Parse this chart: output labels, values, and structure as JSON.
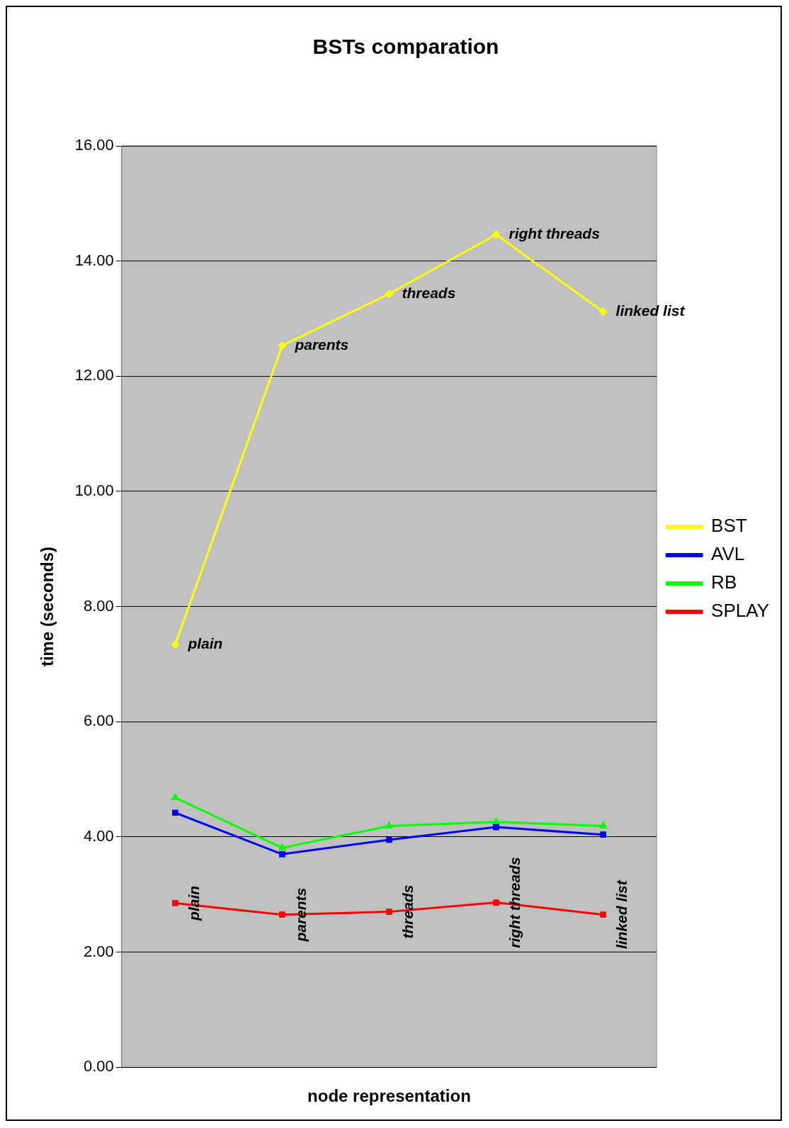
{
  "chart_data": {
    "type": "line",
    "title": "BSTs comparation",
    "xlabel": "node representation",
    "ylabel": "time (seconds)",
    "categories": [
      null,
      null,
      null,
      null,
      null
    ],
    "series": [
      {
        "name": "BST",
        "color": "#ffff00",
        "marker": "diamond",
        "values": [
          7.34,
          12.53,
          13.43,
          14.46,
          13.12
        ]
      },
      {
        "name": "AVL",
        "color": "#0000ff",
        "marker": "square",
        "values": [
          4.42,
          3.7,
          3.95,
          4.17,
          4.04
        ]
      },
      {
        "name": "RB",
        "color": "#00ff00",
        "marker": "triangle",
        "values": [
          4.68,
          3.81,
          4.19,
          4.26,
          4.19
        ]
      },
      {
        "name": "SPLAY",
        "color": "#ff0000",
        "marker": "square",
        "values": [
          2.85,
          2.65,
          2.7,
          2.86,
          2.65
        ]
      }
    ],
    "ylim": [
      0,
      16
    ],
    "yticks": [
      {
        "value": 0,
        "label": "0.00"
      },
      {
        "value": 2,
        "label": "2.00"
      },
      {
        "value": 4,
        "label": "4.00"
      },
      {
        "value": 6,
        "label": "6.00"
      },
      {
        "value": 8,
        "label": "8.00"
      },
      {
        "value": 10,
        "label": "10.00"
      },
      {
        "value": 12,
        "label": "12.00"
      },
      {
        "value": 14,
        "label": "14.00"
      },
      {
        "value": 16,
        "label": "16.00"
      }
    ],
    "grid": "y",
    "legend": "right",
    "tick_labels": "y",
    "annotations": [
      "plain",
      "parents",
      "threads",
      "right threads",
      "linked list",
      "plain",
      "parents",
      "threads",
      "right threads",
      "linked list"
    ]
  }
}
